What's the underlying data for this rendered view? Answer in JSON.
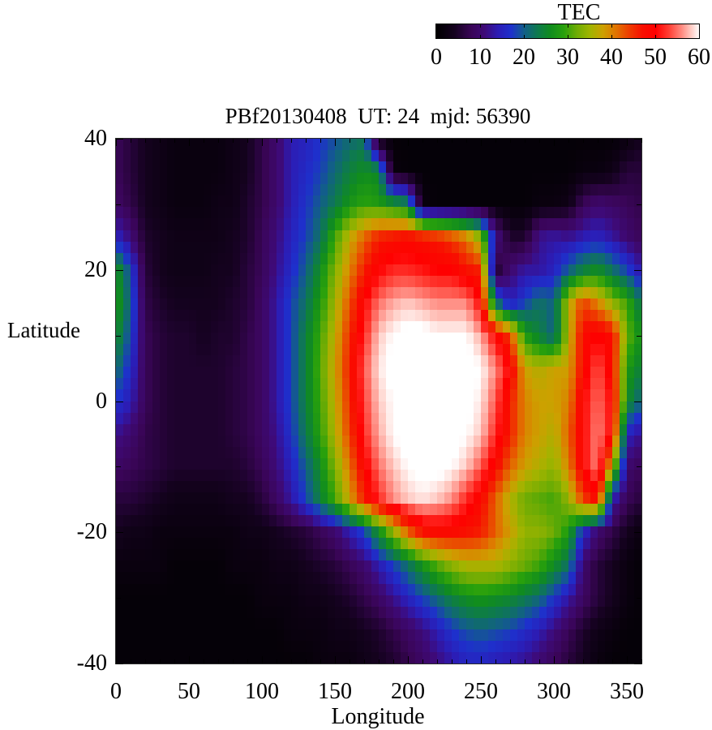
{
  "figure": {
    "title": "PBf20130408  UT: 24  mjd: 56390",
    "xlabel": "Longitude",
    "ylabel": "Latitude",
    "x_tick_labels": [
      "0",
      "50",
      "100",
      "150",
      "200",
      "250",
      "300",
      "350"
    ],
    "x_tick_values": [
      0,
      50,
      100,
      150,
      200,
      250,
      300,
      350
    ],
    "y_tick_labels": [
      "40",
      "20",
      "0",
      "-20",
      "-40"
    ],
    "y_tick_values": [
      40,
      20,
      0,
      -20,
      -40
    ],
    "colorbar": {
      "label": "TEC",
      "min": 0,
      "max": 60,
      "tick_labels": [
        "0",
        "10",
        "20",
        "30",
        "40",
        "50",
        "60"
      ],
      "tick_values": [
        0,
        10,
        20,
        30,
        40,
        50,
        60
      ]
    },
    "border_color": "#2a2a2a",
    "tick_color": "#000000"
  },
  "chart_data": {
    "type": "heatmap",
    "title": "PBf20130408  UT: 24  mjd: 56390",
    "xlabel": "Longitude",
    "ylabel": "Latitude",
    "colorbar_label": "TEC",
    "xlim": [
      0,
      360
    ],
    "ylim": [
      -40,
      40
    ],
    "zlim": [
      0,
      60
    ],
    "grid_on": false,
    "lon": [
      0,
      10,
      20,
      30,
      40,
      50,
      60,
      70,
      80,
      90,
      100,
      110,
      120,
      130,
      140,
      150,
      160,
      170,
      180,
      190,
      200,
      210,
      220,
      230,
      240,
      250,
      260,
      270,
      280,
      290,
      300,
      310,
      320,
      330,
      340,
      350,
      360
    ],
    "lat": [
      40,
      35,
      30,
      25,
      20,
      15,
      10,
      5,
      0,
      -5,
      -10,
      -15,
      -20,
      -25,
      -30,
      -35,
      -40
    ],
    "tec": [
      [
        8,
        6,
        4,
        3,
        2,
        2,
        2,
        2,
        3,
        4,
        7,
        10,
        14,
        15,
        17,
        19,
        21,
        22,
        2,
        1,
        1,
        1,
        1,
        1,
        1,
        1,
        1,
        1,
        1,
        1,
        1,
        1,
        1,
        1,
        1,
        2,
        4
      ],
      [
        8,
        6,
        4,
        3,
        2,
        2,
        2,
        2,
        3,
        4,
        7,
        10,
        14,
        16,
        18,
        21,
        24,
        26,
        25,
        2,
        1,
        1,
        1,
        1,
        1,
        1,
        1,
        1,
        1,
        1,
        1,
        1,
        2,
        2,
        3,
        6,
        6
      ],
      [
        9,
        7,
        4,
        3,
        2,
        2,
        2,
        3,
        3,
        5,
        7,
        10,
        14,
        17,
        20,
        23,
        27,
        29,
        28,
        26,
        24,
        2,
        1,
        1,
        1,
        1,
        1,
        1,
        1,
        2,
        2,
        3,
        8,
        10,
        9,
        8,
        7
      ],
      [
        15,
        11,
        5,
        4,
        3,
        3,
        3,
        3,
        4,
        5,
        8,
        11,
        15,
        18,
        22,
        30,
        37,
        42,
        46,
        47,
        48,
        47,
        46,
        44,
        41,
        34,
        12,
        5,
        5,
        12,
        13,
        12,
        14,
        15,
        13,
        10,
        8
      ],
      [
        27,
        18,
        6,
        4,
        3,
        3,
        3,
        4,
        4,
        6,
        8,
        12,
        16,
        20,
        26,
        33,
        40,
        46,
        50,
        52,
        52,
        51,
        50,
        50,
        47,
        46,
        5,
        10,
        13,
        13,
        15,
        20,
        24,
        26,
        22,
        18,
        13
      ],
      [
        28,
        20,
        7,
        5,
        4,
        4,
        4,
        4,
        5,
        6,
        9,
        13,
        18,
        22,
        28,
        35,
        43,
        50,
        55,
        57,
        58,
        57,
        56,
        56,
        56,
        50,
        22,
        14,
        18,
        22,
        20,
        36,
        44,
        40,
        34,
        30,
        22
      ],
      [
        26,
        18,
        8,
        6,
        5,
        5,
        4,
        5,
        5,
        7,
        9,
        13,
        18,
        24,
        30,
        37,
        45,
        52,
        58,
        60,
        61,
        61,
        60,
        60,
        60,
        57,
        50,
        44,
        28,
        24,
        20,
        36,
        48,
        50,
        48,
        32,
        26
      ],
      [
        22,
        16,
        8,
        6,
        5,
        5,
        5,
        5,
        6,
        7,
        9,
        13,
        18,
        24,
        31,
        38,
        46,
        54,
        59,
        61,
        62,
        62,
        61,
        61,
        61,
        60,
        56,
        50,
        38,
        36,
        38,
        38,
        48,
        54,
        48,
        28,
        24
      ],
      [
        17,
        14,
        8,
        6,
        5,
        5,
        5,
        5,
        6,
        7,
        9,
        13,
        18,
        24,
        30,
        37,
        45,
        53,
        58,
        60,
        62,
        62,
        62,
        61,
        61,
        59,
        54,
        46,
        40,
        38,
        38,
        40,
        50,
        55,
        50,
        26,
        20
      ],
      [
        12,
        10,
        7,
        6,
        5,
        5,
        5,
        5,
        6,
        7,
        9,
        12,
        17,
        23,
        29,
        36,
        44,
        52,
        57,
        60,
        61,
        62,
        62,
        61,
        60,
        58,
        52,
        46,
        40,
        38,
        36,
        42,
        50,
        56,
        50,
        15,
        12
      ],
      [
        9,
        8,
        7,
        6,
        5,
        5,
        5,
        5,
        5,
        6,
        8,
        11,
        15,
        20,
        26,
        33,
        41,
        49,
        55,
        58,
        60,
        61,
        61,
        60,
        58,
        54,
        48,
        42,
        38,
        36,
        34,
        40,
        50,
        56,
        36,
        10,
        8
      ],
      [
        6,
        6,
        5,
        4,
        3,
        3,
        3,
        3,
        4,
        4,
        6,
        9,
        13,
        18,
        24,
        30,
        38,
        46,
        52,
        56,
        58,
        59,
        58,
        56,
        52,
        48,
        42,
        36,
        32,
        31,
        30,
        34,
        44,
        48,
        14,
        8,
        6
      ],
      [
        4,
        3,
        3,
        2,
        2,
        2,
        2,
        2,
        2,
        3,
        3,
        4,
        5,
        6,
        8,
        10,
        14,
        18,
        26,
        34,
        42,
        47,
        48,
        48,
        47,
        46,
        42,
        38,
        34,
        34,
        32,
        28,
        16,
        10,
        7,
        4,
        2
      ],
      [
        2,
        2,
        2,
        2,
        1,
        1,
        1,
        1,
        2,
        2,
        2,
        3,
        3,
        4,
        5,
        6,
        8,
        10,
        14,
        18,
        22,
        27,
        31,
        34,
        36,
        36,
        36,
        34,
        32,
        30,
        26,
        22,
        10,
        6,
        4,
        2,
        1
      ],
      [
        1,
        1,
        1,
        1,
        1,
        1,
        1,
        1,
        1,
        1,
        2,
        2,
        2,
        3,
        3,
        4,
        5,
        7,
        9,
        12,
        15,
        18,
        21,
        24,
        26,
        27,
        26,
        25,
        23,
        21,
        17,
        13,
        9,
        6,
        4,
        2,
        1
      ],
      [
        1,
        1,
        1,
        1,
        1,
        1,
        1,
        1,
        1,
        1,
        1,
        1,
        2,
        2,
        2,
        3,
        3,
        4,
        5,
        7,
        9,
        11,
        14,
        17,
        19,
        20,
        19,
        18,
        16,
        14,
        11,
        8,
        5,
        3,
        2,
        1,
        1
      ],
      [
        1,
        1,
        1,
        1,
        1,
        1,
        1,
        1,
        1,
        1,
        1,
        1,
        1,
        1,
        2,
        2,
        2,
        3,
        4,
        5,
        7,
        9,
        11,
        13,
        15,
        15,
        14,
        13,
        12,
        10,
        8,
        6,
        4,
        2,
        1,
        1,
        1
      ]
    ],
    "palette_stops": [
      {
        "value": 0,
        "rgb": [
          0,
          0,
          0
        ]
      },
      {
        "value": 4,
        "rgb": [
          20,
          2,
          30
        ]
      },
      {
        "value": 8,
        "rgb": [
          58,
          5,
          88
        ]
      },
      {
        "value": 11,
        "rgb": [
          62,
          10,
          120
        ]
      },
      {
        "value": 14,
        "rgb": [
          44,
          28,
          180
        ]
      },
      {
        "value": 17,
        "rgb": [
          30,
          48,
          204
        ]
      },
      {
        "value": 20,
        "rgb": [
          18,
          95,
          136
        ]
      },
      {
        "value": 23,
        "rgb": [
          14,
          122,
          78
        ]
      },
      {
        "value": 26,
        "rgb": [
          16,
          140,
          30
        ]
      },
      {
        "value": 29,
        "rgb": [
          40,
          160,
          12
        ]
      },
      {
        "value": 32,
        "rgb": [
          110,
          172,
          4
        ]
      },
      {
        "value": 35,
        "rgb": [
          160,
          180,
          0
        ]
      },
      {
        "value": 38,
        "rgb": [
          205,
          160,
          0
        ]
      },
      {
        "value": 41,
        "rgb": [
          225,
          115,
          0
        ]
      },
      {
        "value": 44,
        "rgb": [
          238,
          60,
          0
        ]
      },
      {
        "value": 47,
        "rgb": [
          248,
          15,
          0
        ]
      },
      {
        "value": 50,
        "rgb": [
          255,
          0,
          0
        ]
      },
      {
        "value": 53,
        "rgb": [
          255,
          62,
          52
        ]
      },
      {
        "value": 56,
        "rgb": [
          255,
          140,
          130
        ]
      },
      {
        "value": 58,
        "rgb": [
          255,
          200,
          192
        ]
      },
      {
        "value": 60,
        "rgb": [
          255,
          255,
          255
        ]
      }
    ]
  }
}
